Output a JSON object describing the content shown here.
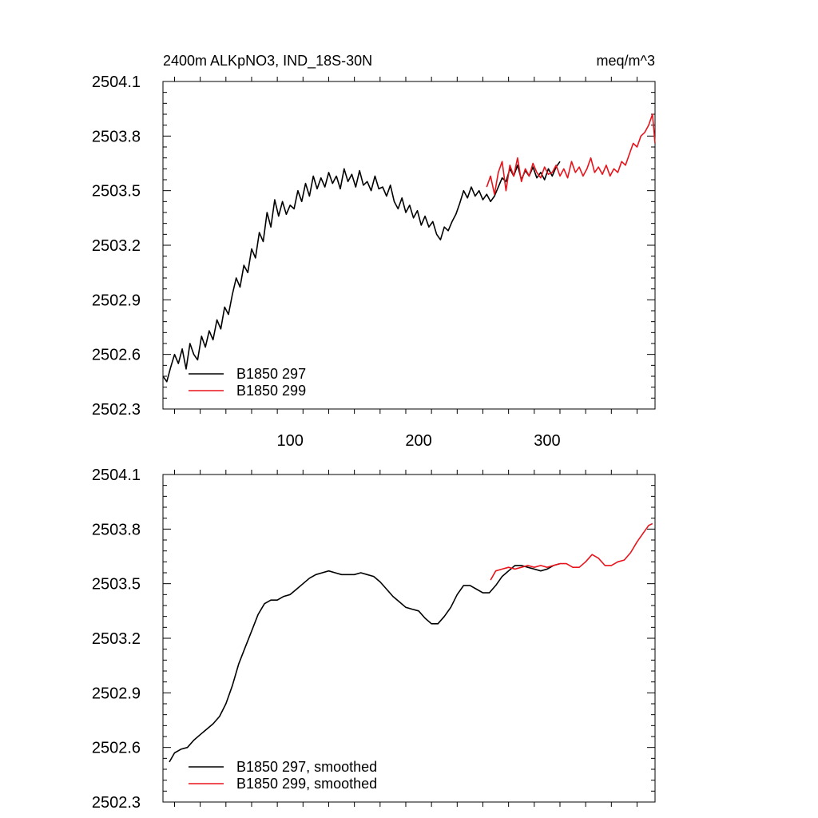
{
  "header": {
    "title": "2400m ALKpNO3, IND_18S-30N",
    "units": "meq/m^3"
  },
  "colors": {
    "run297": "#000000",
    "run299": "#e8141c",
    "axis": "#000000"
  },
  "chart_data": [
    {
      "type": "line",
      "title": "2400m ALKpNO3, IND_18S-30N",
      "units_label": "meq/m^3",
      "xlabel": "",
      "ylabel": "",
      "xlim": [
        1,
        384
      ],
      "ylim": [
        2502.3,
        2504.1
      ],
      "xticks": [
        100,
        200,
        300
      ],
      "xtick_labels": [
        "100",
        "200",
        "300"
      ],
      "yticks": [
        2502.3,
        2502.6,
        2502.9,
        2503.2,
        2503.5,
        2503.8,
        2504.1
      ],
      "ytick_labels": [
        "2502.3",
        "2502.6",
        "2502.9",
        "2503.2",
        "2503.5",
        "2503.8",
        "2504.1"
      ],
      "legend_position": "bottom-left",
      "grid": false,
      "series": [
        {
          "name": "B1850 297",
          "color": "#000000",
          "x": [
            1,
            4,
            7,
            10,
            13,
            16,
            19,
            22,
            25,
            28,
            31,
            34,
            37,
            40,
            43,
            46,
            49,
            52,
            55,
            58,
            61,
            64,
            67,
            70,
            73,
            76,
            79,
            82,
            85,
            88,
            91,
            94,
            97,
            100,
            103,
            106,
            109,
            112,
            115,
            118,
            121,
            124,
            127,
            130,
            133,
            136,
            139,
            142,
            145,
            148,
            151,
            154,
            157,
            160,
            163,
            166,
            169,
            172,
            175,
            178,
            181,
            184,
            187,
            190,
            193,
            196,
            199,
            202,
            205,
            208,
            211,
            214,
            217,
            220,
            223,
            226,
            229,
            232,
            235,
            238,
            241,
            244,
            247,
            250,
            253,
            256,
            259,
            262,
            265,
            268,
            271,
            274,
            277,
            280,
            283,
            286,
            289,
            292,
            295,
            298,
            301,
            304,
            307,
            310
          ],
          "y": [
            2502.48,
            2502.45,
            2502.53,
            2502.6,
            2502.55,
            2502.63,
            2502.52,
            2502.66,
            2502.6,
            2502.57,
            2502.7,
            2502.64,
            2502.73,
            2502.68,
            2502.79,
            2502.74,
            2502.86,
            2502.82,
            2502.93,
            2503.02,
            2502.97,
            2503.09,
            2503.05,
            2503.18,
            2503.13,
            2503.27,
            2503.22,
            2503.38,
            2503.3,
            2503.45,
            2503.36,
            2503.44,
            2503.37,
            2503.42,
            2503.4,
            2503.5,
            2503.44,
            2503.54,
            2503.47,
            2503.58,
            2503.51,
            2503.57,
            2503.52,
            2503.6,
            2503.54,
            2503.58,
            2503.51,
            2503.62,
            2503.55,
            2503.59,
            2503.52,
            2503.61,
            2503.53,
            2503.55,
            2503.5,
            2503.58,
            2503.51,
            2503.52,
            2503.47,
            2503.53,
            2503.44,
            2503.4,
            2503.46,
            2503.38,
            2503.42,
            2503.35,
            2503.39,
            2503.31,
            2503.36,
            2503.3,
            2503.33,
            2503.26,
            2503.23,
            2503.3,
            2503.28,
            2503.33,
            2503.37,
            2503.43,
            2503.5,
            2503.46,
            2503.52,
            2503.47,
            2503.5,
            2503.45,
            2503.48,
            2503.44,
            2503.47,
            2503.52,
            2503.57,
            2503.55,
            2503.62,
            2503.58,
            2503.64,
            2503.56,
            2503.61,
            2503.58,
            2503.63,
            2503.57,
            2503.6,
            2503.56,
            2503.62,
            2503.58,
            2503.63,
            2503.66
          ]
        },
        {
          "name": "B1850 299",
          "color": "#e8141c",
          "x": [
            253,
            256,
            259,
            262,
            265,
            268,
            271,
            274,
            277,
            280,
            283,
            286,
            289,
            292,
            295,
            298,
            301,
            304,
            307,
            310,
            313,
            316,
            319,
            322,
            325,
            328,
            331,
            334,
            337,
            340,
            343,
            346,
            349,
            352,
            355,
            358,
            361,
            364,
            367,
            370,
            373,
            376,
            379,
            382,
            384
          ],
          "y": [
            2503.52,
            2503.58,
            2503.48,
            2503.6,
            2503.66,
            2503.5,
            2503.64,
            2503.58,
            2503.68,
            2503.55,
            2503.62,
            2503.58,
            2503.65,
            2503.6,
            2503.57,
            2503.63,
            2503.59,
            2503.6,
            2503.64,
            2503.58,
            2503.62,
            2503.57,
            2503.66,
            2503.6,
            2503.63,
            2503.58,
            2503.62,
            2503.68,
            2503.6,
            2503.63,
            2503.59,
            2503.64,
            2503.58,
            2503.62,
            2503.6,
            2503.66,
            2503.64,
            2503.7,
            2503.76,
            2503.74,
            2503.8,
            2503.82,
            2503.86,
            2503.92,
            2503.76
          ]
        }
      ]
    },
    {
      "type": "line",
      "title": "",
      "xlabel": "",
      "ylabel": "",
      "xlim": [
        1,
        384
      ],
      "ylim": [
        2502.3,
        2504.1
      ],
      "xticks": [
        100,
        200,
        300
      ],
      "xtick_labels": [
        "",
        "",
        ""
      ],
      "yticks": [
        2502.3,
        2502.6,
        2502.9,
        2503.2,
        2503.5,
        2503.8,
        2504.1
      ],
      "ytick_labels": [
        "2502.3",
        "2502.6",
        "2502.9",
        "2503.2",
        "2503.5",
        "2503.8",
        "2504.1"
      ],
      "legend_position": "bottom-left",
      "grid": false,
      "series": [
        {
          "name": "B1850 297, smoothed",
          "color": "#000000",
          "x": [
            6,
            10,
            15,
            20,
            25,
            30,
            35,
            40,
            45,
            50,
            55,
            60,
            65,
            70,
            75,
            80,
            85,
            90,
            95,
            100,
            105,
            110,
            115,
            120,
            125,
            130,
            135,
            140,
            145,
            150,
            155,
            160,
            165,
            170,
            175,
            180,
            185,
            190,
            195,
            200,
            205,
            210,
            215,
            220,
            225,
            230,
            235,
            240,
            245,
            250,
            255,
            260,
            265,
            270,
            275,
            280,
            285,
            290,
            295,
            300,
            305,
            310
          ],
          "y": [
            2502.52,
            2502.57,
            2502.59,
            2502.6,
            2502.64,
            2502.67,
            2502.7,
            2502.73,
            2502.77,
            2502.84,
            2502.94,
            2503.06,
            2503.15,
            2503.24,
            2503.33,
            2503.39,
            2503.41,
            2503.41,
            2503.43,
            2503.44,
            2503.47,
            2503.5,
            2503.53,
            2503.55,
            2503.56,
            2503.57,
            2503.56,
            2503.55,
            2503.55,
            2503.55,
            2503.56,
            2503.55,
            2503.54,
            2503.51,
            2503.47,
            2503.43,
            2503.4,
            2503.37,
            2503.36,
            2503.35,
            2503.31,
            2503.28,
            2503.28,
            2503.32,
            2503.37,
            2503.44,
            2503.49,
            2503.49,
            2503.47,
            2503.45,
            2503.45,
            2503.49,
            2503.54,
            2503.57,
            2503.6,
            2503.6,
            2503.59,
            2503.58,
            2503.57,
            2503.58,
            2503.6,
            2503.61
          ]
        },
        {
          "name": "B1850 299, smoothed",
          "color": "#e8141c",
          "x": [
            256,
            260,
            265,
            270,
            275,
            280,
            285,
            290,
            295,
            300,
            305,
            310,
            315,
            320,
            325,
            330,
            335,
            340,
            345,
            350,
            355,
            360,
            365,
            370,
            375,
            379,
            382
          ],
          "y": [
            2503.52,
            2503.57,
            2503.58,
            2503.59,
            2503.58,
            2503.59,
            2503.6,
            2503.59,
            2503.6,
            2503.59,
            2503.6,
            2503.61,
            2503.61,
            2503.59,
            2503.59,
            2503.62,
            2503.66,
            2503.64,
            2503.6,
            2503.6,
            2503.62,
            2503.63,
            2503.67,
            2503.73,
            2503.78,
            2503.82,
            2503.83
          ]
        }
      ]
    }
  ]
}
